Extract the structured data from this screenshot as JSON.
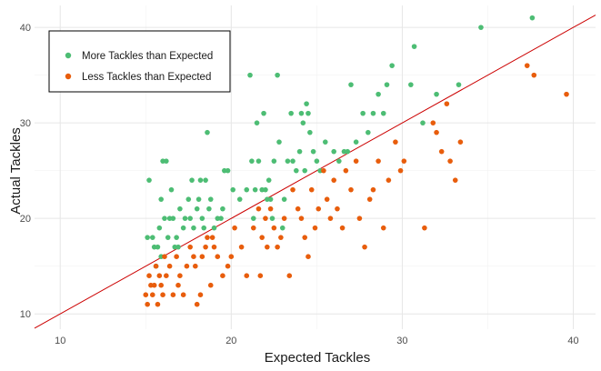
{
  "chart_data": {
    "type": "scatter",
    "title": "",
    "xlabel": "Expected Tackles",
    "ylabel": "Actual Tackles",
    "xlim": [
      8.5,
      41.3
    ],
    "ylim": [
      8.4,
      42.3
    ],
    "xticks": [
      10,
      20,
      30,
      40
    ],
    "yticks": [
      10,
      20,
      30,
      40
    ],
    "grid": true,
    "legend_position": "top-left",
    "reference_line": {
      "label": "y = x",
      "color": "#cc0000"
    },
    "series": [
      {
        "name": "More Tackles than Expected",
        "color": "#4dbd74",
        "points": [
          [
            15.1,
            18
          ],
          [
            15.2,
            24
          ],
          [
            15.4,
            18
          ],
          [
            15.5,
            17
          ],
          [
            15.6,
            15
          ],
          [
            15.7,
            17
          ],
          [
            15.8,
            19
          ],
          [
            15.9,
            22
          ],
          [
            15.9,
            16
          ],
          [
            16.0,
            26
          ],
          [
            16.1,
            20
          ],
          [
            16.2,
            26
          ],
          [
            16.3,
            18
          ],
          [
            16.4,
            20
          ],
          [
            16.5,
            23
          ],
          [
            16.6,
            20
          ],
          [
            16.7,
            17
          ],
          [
            16.8,
            18
          ],
          [
            16.9,
            17
          ],
          [
            17.0,
            21
          ],
          [
            17.2,
            19
          ],
          [
            17.3,
            20
          ],
          [
            17.5,
            22
          ],
          [
            17.6,
            20
          ],
          [
            17.7,
            24
          ],
          [
            17.8,
            19
          ],
          [
            18.0,
            21
          ],
          [
            18.1,
            22
          ],
          [
            18.2,
            24
          ],
          [
            18.3,
            20
          ],
          [
            18.4,
            19
          ],
          [
            18.5,
            24
          ],
          [
            18.6,
            29
          ],
          [
            18.7,
            21
          ],
          [
            18.8,
            22
          ],
          [
            19.0,
            19
          ],
          [
            19.2,
            20
          ],
          [
            19.4,
            20
          ],
          [
            19.5,
            21
          ],
          [
            19.6,
            25
          ],
          [
            19.8,
            25
          ],
          [
            20.1,
            23
          ],
          [
            20.5,
            22
          ],
          [
            20.9,
            23
          ],
          [
            21.1,
            35
          ],
          [
            21.2,
            26
          ],
          [
            21.3,
            20
          ],
          [
            21.4,
            23
          ],
          [
            21.5,
            30
          ],
          [
            21.6,
            26
          ],
          [
            21.8,
            23
          ],
          [
            21.9,
            31
          ],
          [
            22.0,
            23
          ],
          [
            22.1,
            22
          ],
          [
            22.2,
            24
          ],
          [
            22.3,
            22
          ],
          [
            22.4,
            20
          ],
          [
            22.5,
            26
          ],
          [
            22.7,
            35
          ],
          [
            22.8,
            28
          ],
          [
            23.0,
            19
          ],
          [
            23.1,
            22
          ],
          [
            23.3,
            26
          ],
          [
            23.5,
            31
          ],
          [
            23.6,
            26
          ],
          [
            23.8,
            25
          ],
          [
            24.0,
            27
          ],
          [
            24.1,
            31
          ],
          [
            24.2,
            30
          ],
          [
            24.3,
            25
          ],
          [
            24.4,
            32
          ],
          [
            24.5,
            31
          ],
          [
            24.6,
            29
          ],
          [
            24.8,
            27
          ],
          [
            25.0,
            26
          ],
          [
            25.2,
            25
          ],
          [
            25.5,
            28
          ],
          [
            26.0,
            27
          ],
          [
            26.3,
            26
          ],
          [
            26.6,
            27
          ],
          [
            26.8,
            27
          ],
          [
            27.0,
            34
          ],
          [
            27.3,
            28
          ],
          [
            27.7,
            31
          ],
          [
            28.0,
            29
          ],
          [
            28.3,
            31
          ],
          [
            28.6,
            33
          ],
          [
            28.9,
            31
          ],
          [
            29.1,
            34
          ],
          [
            29.4,
            36
          ],
          [
            30.5,
            34
          ],
          [
            30.7,
            38
          ],
          [
            31.2,
            30
          ],
          [
            32.0,
            33
          ],
          [
            33.3,
            34
          ],
          [
            34.6,
            40
          ],
          [
            37.6,
            41
          ]
        ]
      },
      {
        "name": "Less Tackles than Expected",
        "color": "#e85d0c",
        "points": [
          [
            15.0,
            12
          ],
          [
            15.1,
            11
          ],
          [
            15.2,
            14
          ],
          [
            15.3,
            13
          ],
          [
            15.4,
            12
          ],
          [
            15.5,
            13
          ],
          [
            15.6,
            15
          ],
          [
            15.7,
            11
          ],
          [
            15.8,
            14
          ],
          [
            15.9,
            13
          ],
          [
            16.0,
            12
          ],
          [
            16.1,
            16
          ],
          [
            16.2,
            14
          ],
          [
            16.4,
            15
          ],
          [
            16.6,
            12
          ],
          [
            16.8,
            16
          ],
          [
            16.9,
            13
          ],
          [
            17.0,
            14
          ],
          [
            17.2,
            12
          ],
          [
            17.4,
            15
          ],
          [
            17.6,
            17
          ],
          [
            17.8,
            16
          ],
          [
            17.9,
            15
          ],
          [
            18.0,
            11
          ],
          [
            18.2,
            12
          ],
          [
            18.3,
            16
          ],
          [
            18.5,
            17
          ],
          [
            18.6,
            18
          ],
          [
            18.8,
            13
          ],
          [
            18.9,
            18
          ],
          [
            19.0,
            17
          ],
          [
            19.2,
            16
          ],
          [
            19.5,
            14
          ],
          [
            19.8,
            15
          ],
          [
            20.0,
            16
          ],
          [
            20.2,
            19
          ],
          [
            20.6,
            17
          ],
          [
            20.9,
            14
          ],
          [
            21.3,
            19
          ],
          [
            21.6,
            21
          ],
          [
            21.7,
            14
          ],
          [
            21.8,
            18
          ],
          [
            22.0,
            20
          ],
          [
            22.1,
            17
          ],
          [
            22.3,
            21
          ],
          [
            22.5,
            19
          ],
          [
            22.7,
            17
          ],
          [
            22.9,
            18
          ],
          [
            23.1,
            20
          ],
          [
            23.4,
            14
          ],
          [
            23.6,
            23
          ],
          [
            23.9,
            21
          ],
          [
            24.1,
            20
          ],
          [
            24.3,
            18
          ],
          [
            24.5,
            16
          ],
          [
            24.7,
            23
          ],
          [
            24.9,
            19
          ],
          [
            25.1,
            21
          ],
          [
            25.4,
            25
          ],
          [
            25.6,
            22
          ],
          [
            25.8,
            20
          ],
          [
            26.0,
            24
          ],
          [
            26.2,
            21
          ],
          [
            26.5,
            19
          ],
          [
            26.7,
            25
          ],
          [
            27.0,
            23
          ],
          [
            27.3,
            26
          ],
          [
            27.5,
            20
          ],
          [
            27.8,
            17
          ],
          [
            28.1,
            22
          ],
          [
            28.3,
            23
          ],
          [
            28.6,
            26
          ],
          [
            28.9,
            19
          ],
          [
            29.2,
            24
          ],
          [
            29.6,
            28
          ],
          [
            29.9,
            25
          ],
          [
            30.1,
            26
          ],
          [
            31.3,
            19
          ],
          [
            31.8,
            30
          ],
          [
            32.0,
            29
          ],
          [
            32.3,
            27
          ],
          [
            32.6,
            32
          ],
          [
            32.8,
            26
          ],
          [
            33.1,
            24
          ],
          [
            33.4,
            28
          ],
          [
            37.3,
            36
          ],
          [
            37.7,
            35
          ],
          [
            39.6,
            33
          ]
        ]
      }
    ]
  }
}
